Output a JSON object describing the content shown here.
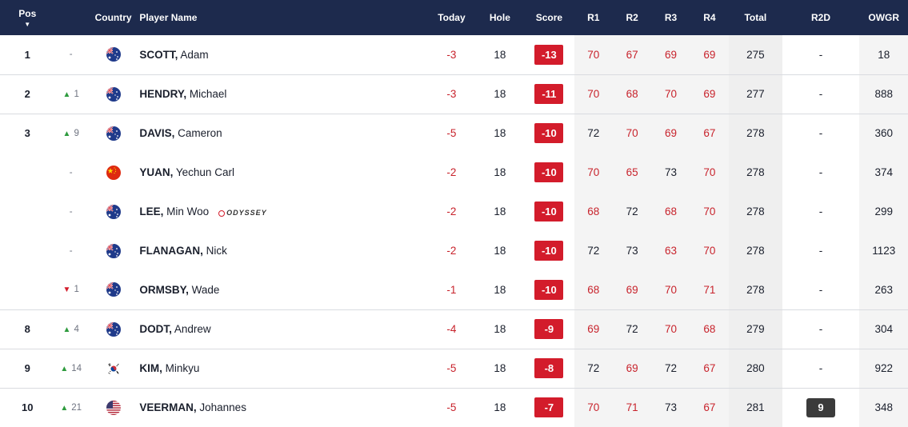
{
  "headers": {
    "pos": "Pos",
    "country": "Country",
    "player": "Player Name",
    "today": "Today",
    "hole": "Hole",
    "score": "Score",
    "r1": "R1",
    "r2": "R2",
    "r3": "R3",
    "r4": "R4",
    "total": "Total",
    "r2d": "R2D",
    "owgr": "OWGR",
    "sort_icon": "sort-down-icon"
  },
  "rows": [
    {
      "pos": "1",
      "move_dir": "none",
      "move": "-",
      "flag": "australia-flag-icon",
      "last": "SCOTT,",
      "first": "Adam",
      "sponsor": "",
      "today": "-3",
      "hole": "18",
      "score": "-13",
      "r1": "70",
      "r2": "67",
      "r3": "69",
      "r4": "69",
      "total": "275",
      "r2d": "-",
      "owgr": "18"
    },
    {
      "pos": "2",
      "move_dir": "up",
      "move": "1",
      "flag": "australia-flag-icon",
      "last": "HENDRY,",
      "first": "Michael",
      "sponsor": "",
      "today": "-3",
      "hole": "18",
      "score": "-11",
      "r1": "70",
      "r2": "68",
      "r3": "70",
      "r4": "69",
      "total": "277",
      "r2d": "-",
      "owgr": "888"
    },
    {
      "pos": "3",
      "move_dir": "up",
      "move": "9",
      "flag": "australia-flag-icon",
      "last": "DAVIS,",
      "first": "Cameron",
      "sponsor": "",
      "today": "-5",
      "hole": "18",
      "score": "-10",
      "r1": "72",
      "r2": "70",
      "r3": "69",
      "r4": "67",
      "total": "278",
      "r2d": "-",
      "owgr": "360"
    },
    {
      "pos": "",
      "move_dir": "none",
      "move": "-",
      "flag": "china-flag-icon",
      "last": "YUAN,",
      "first": "Yechun Carl",
      "sponsor": "",
      "today": "-2",
      "hole": "18",
      "score": "-10",
      "r1": "70",
      "r2": "65",
      "r3": "73",
      "r4": "70",
      "total": "278",
      "r2d": "-",
      "owgr": "374"
    },
    {
      "pos": "",
      "move_dir": "none",
      "move": "-",
      "flag": "australia-flag-icon",
      "last": "LEE,",
      "first": "Min Woo",
      "sponsor": "ODYSSEY",
      "today": "-2",
      "hole": "18",
      "score": "-10",
      "r1": "68",
      "r2": "72",
      "r3": "68",
      "r4": "70",
      "total": "278",
      "r2d": "-",
      "owgr": "299"
    },
    {
      "pos": "",
      "move_dir": "none",
      "move": "-",
      "flag": "australia-flag-icon",
      "last": "FLANAGAN,",
      "first": "Nick",
      "sponsor": "",
      "today": "-2",
      "hole": "18",
      "score": "-10",
      "r1": "72",
      "r2": "73",
      "r3": "63",
      "r4": "70",
      "total": "278",
      "r2d": "-",
      "owgr": "1123"
    },
    {
      "pos": "",
      "move_dir": "down",
      "move": "1",
      "flag": "australia-flag-icon",
      "last": "ORMSBY,",
      "first": "Wade",
      "sponsor": "",
      "today": "-1",
      "hole": "18",
      "score": "-10",
      "r1": "68",
      "r2": "69",
      "r3": "70",
      "r4": "71",
      "total": "278",
      "r2d": "-",
      "owgr": "263"
    },
    {
      "pos": "8",
      "move_dir": "up",
      "move": "4",
      "flag": "australia-flag-icon",
      "last": "DODT,",
      "first": "Andrew",
      "sponsor": "",
      "today": "-4",
      "hole": "18",
      "score": "-9",
      "r1": "69",
      "r2": "72",
      "r3": "70",
      "r4": "68",
      "total": "279",
      "r2d": "-",
      "owgr": "304"
    },
    {
      "pos": "9",
      "move_dir": "up",
      "move": "14",
      "flag": "korea-flag-icon",
      "last": "KIM,",
      "first": "Minkyu",
      "sponsor": "",
      "today": "-5",
      "hole": "18",
      "score": "-8",
      "r1": "72",
      "r2": "69",
      "r3": "72",
      "r4": "67",
      "total": "280",
      "r2d": "-",
      "owgr": "922"
    },
    {
      "pos": "10",
      "move_dir": "up",
      "move": "21",
      "flag": "usa-flag-icon",
      "last": "VEERMAN,",
      "first": "Johannes",
      "sponsor": "",
      "today": "-5",
      "hole": "18",
      "score": "-7",
      "r1": "70",
      "r2": "71",
      "r3": "73",
      "r4": "67",
      "total": "281",
      "r2d": "9",
      "owgr": "348"
    }
  ],
  "colors": {
    "header_bg": "#1d2a4d",
    "score_bg": "#d31c2b",
    "under_par": "#c8232c",
    "move_up": "#2e9b3e",
    "move_down": "#d31c2b"
  }
}
